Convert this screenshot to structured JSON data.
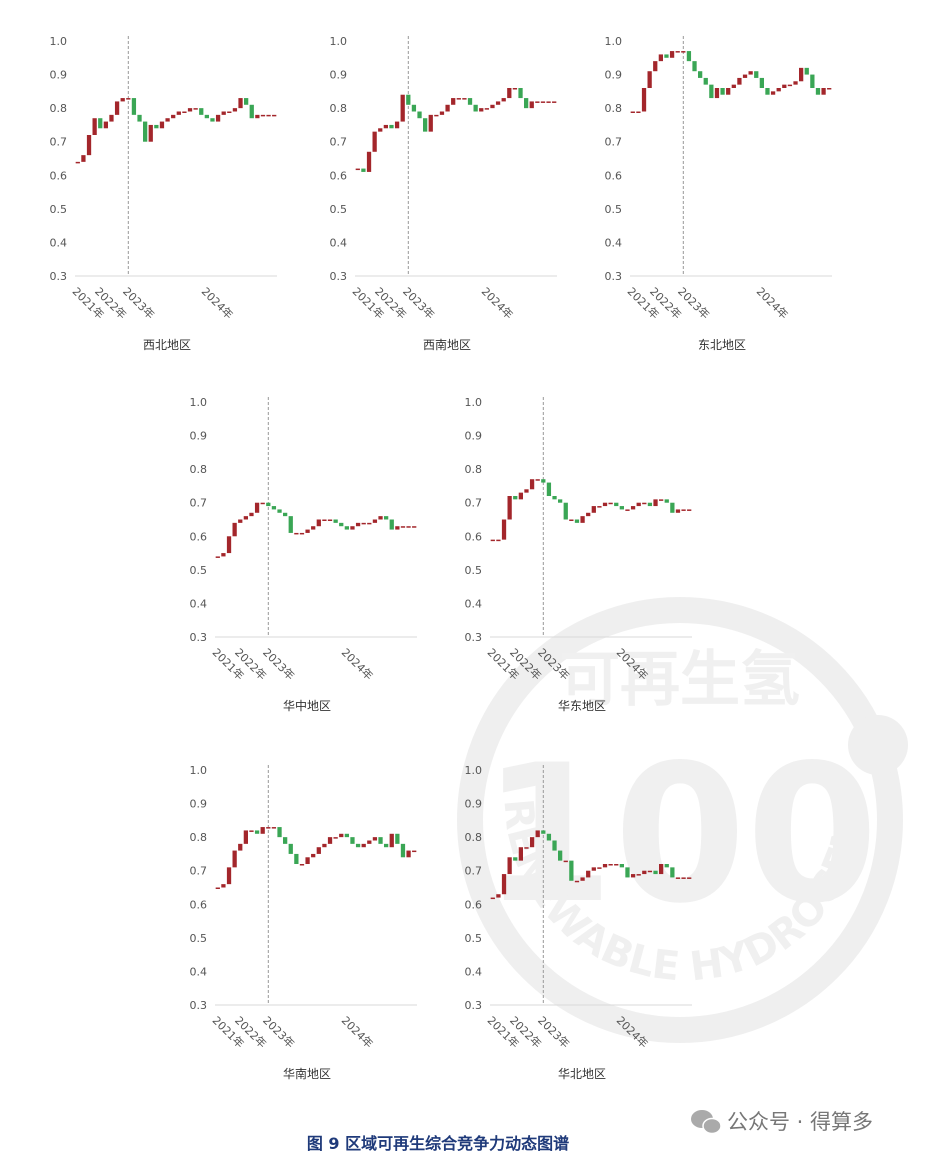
{
  "caption": "图 9 区域可再生综合竞争力动态图谱",
  "watermark": "公众号 · 得算多",
  "logo": {
    "top": "可再生氢",
    "number": "100",
    "ring": "RENEWABLE HYDROGEN"
  },
  "chart_data": [
    {
      "type": "candlestick",
      "title": "西北地区",
      "up_color": "#a3262b",
      "down_color": "#3aa655",
      "divider_index": 9,
      "categories": [
        "2021年",
        null,
        null,
        null,
        "2022年",
        null,
        null,
        null,
        null,
        "2023年",
        null,
        null,
        null,
        null,
        null,
        null,
        null,
        null,
        null,
        null,
        null,
        null,
        null,
        "2024年",
        null,
        null,
        null,
        null,
        null,
        null,
        null,
        null,
        null,
        null,
        null,
        null
      ],
      "values": [
        0.64,
        0.66,
        0.72,
        0.77,
        0.74,
        0.76,
        0.78,
        0.82,
        0.83,
        0.83,
        0.78,
        0.76,
        0.7,
        0.75,
        0.74,
        0.76,
        0.77,
        0.78,
        0.79,
        0.79,
        0.8,
        0.8,
        0.78,
        0.77,
        0.76,
        0.78,
        0.79,
        0.79,
        0.8,
        0.83,
        0.81,
        0.77,
        0.78,
        0.78,
        0.78,
        0.78
      ],
      "ylim": [
        0.3,
        1.0
      ],
      "yticks": [
        0.3,
        0.4,
        0.5,
        0.6,
        0.7,
        0.8,
        0.9,
        {
          "value": 1.0,
          "label": "1.0"
        }
      ]
    },
    {
      "type": "candlestick",
      "title": "西南地区",
      "up_color": "#a3262b",
      "down_color": "#3aa655",
      "divider_index": 9,
      "categories": [
        "2021年",
        null,
        null,
        null,
        "2022年",
        null,
        null,
        null,
        null,
        "2023年",
        null,
        null,
        null,
        null,
        null,
        null,
        null,
        null,
        null,
        null,
        null,
        null,
        null,
        "2024年",
        null,
        null,
        null,
        null,
        null,
        null,
        null,
        null,
        null,
        null,
        null,
        null
      ],
      "values": [
        0.62,
        0.61,
        0.67,
        0.73,
        0.74,
        0.75,
        0.74,
        0.76,
        0.84,
        0.81,
        0.79,
        0.77,
        0.73,
        0.78,
        0.78,
        0.79,
        0.81,
        0.83,
        0.83,
        0.83,
        0.81,
        0.79,
        0.8,
        0.8,
        0.81,
        0.82,
        0.83,
        0.86,
        0.86,
        0.83,
        0.8,
        0.82,
        0.82,
        0.82,
        0.82,
        0.82
      ],
      "ylim": [
        0.3,
        1.0
      ],
      "yticks": [
        0.3,
        0.4,
        0.5,
        0.6,
        0.7,
        0.8,
        0.9,
        {
          "value": 1.0,
          "label": "1.0"
        }
      ]
    },
    {
      "type": "candlestick",
      "title": "东北地区",
      "up_color": "#a3262b",
      "down_color": "#3aa655",
      "divider_index": 9,
      "categories": [
        "2021年",
        null,
        null,
        null,
        "2022年",
        null,
        null,
        null,
        null,
        "2023年",
        null,
        null,
        null,
        null,
        null,
        null,
        null,
        null,
        null,
        null,
        null,
        null,
        null,
        "2024年",
        null,
        null,
        null,
        null,
        null,
        null,
        null,
        null,
        null,
        null,
        null,
        null
      ],
      "values": [
        0.79,
        0.79,
        0.86,
        0.91,
        0.94,
        0.96,
        0.95,
        0.97,
        0.97,
        0.97,
        0.94,
        0.91,
        0.89,
        0.87,
        0.83,
        0.86,
        0.84,
        0.86,
        0.87,
        0.89,
        0.9,
        0.91,
        0.89,
        0.86,
        0.84,
        0.85,
        0.86,
        0.87,
        0.87,
        0.88,
        0.92,
        0.9,
        0.86,
        0.84,
        0.86,
        0.86
      ],
      "ylim": [
        0.3,
        1.0
      ],
      "yticks": [
        0.3,
        0.4,
        0.5,
        0.6,
        0.7,
        0.8,
        0.9,
        {
          "value": 1.0,
          "label": "1.0"
        }
      ]
    },
    {
      "type": "candlestick",
      "title": "华中地区",
      "up_color": "#a3262b",
      "down_color": "#3aa655",
      "divider_index": 9,
      "categories": [
        "2021年",
        null,
        null,
        null,
        "2022年",
        null,
        null,
        null,
        null,
        "2023年",
        null,
        null,
        null,
        null,
        null,
        null,
        null,
        null,
        null,
        null,
        null,
        null,
        null,
        "2024年",
        null,
        null,
        null,
        null,
        null,
        null,
        null,
        null,
        null,
        null,
        null,
        null
      ],
      "values": [
        0.54,
        0.55,
        0.6,
        0.64,
        0.65,
        0.66,
        0.67,
        0.7,
        0.7,
        0.69,
        0.68,
        0.67,
        0.66,
        0.61,
        0.61,
        0.61,
        0.62,
        0.63,
        0.65,
        0.65,
        0.65,
        0.64,
        0.63,
        0.62,
        0.63,
        0.64,
        0.64,
        0.64,
        0.65,
        0.66,
        0.65,
        0.62,
        0.63,
        0.63,
        0.63,
        0.63
      ],
      "ylim": [
        0.3,
        1.0
      ],
      "yticks": [
        0.3,
        0.4,
        0.5,
        0.6,
        0.7,
        0.8,
        0.9,
        {
          "value": 1.0,
          "label": "1.0"
        }
      ]
    },
    {
      "type": "candlestick",
      "title": "华东地区",
      "up_color": "#a3262b",
      "down_color": "#3aa655",
      "divider_index": 9,
      "categories": [
        "2021年",
        null,
        null,
        null,
        "2022年",
        null,
        null,
        null,
        null,
        "2023年",
        null,
        null,
        null,
        null,
        null,
        null,
        null,
        null,
        null,
        null,
        null,
        null,
        null,
        "2024年",
        null,
        null,
        null,
        null,
        null,
        null,
        null,
        null,
        null,
        null,
        null,
        null
      ],
      "values": [
        0.59,
        0.59,
        0.65,
        0.72,
        0.71,
        0.73,
        0.74,
        0.77,
        0.77,
        0.76,
        0.72,
        0.71,
        0.7,
        0.65,
        0.65,
        0.64,
        0.66,
        0.67,
        0.69,
        0.69,
        0.7,
        0.7,
        0.69,
        0.68,
        0.68,
        0.69,
        0.7,
        0.7,
        0.69,
        0.71,
        0.71,
        0.7,
        0.67,
        0.68,
        0.68,
        0.68
      ],
      "ylim": [
        0.3,
        1.0
      ],
      "yticks": [
        0.3,
        0.4,
        0.5,
        0.6,
        0.7,
        0.8,
        0.9,
        {
          "value": 1.0,
          "label": "1.0"
        }
      ]
    },
    {
      "type": "candlestick",
      "title": "华南地区",
      "up_color": "#a3262b",
      "down_color": "#3aa655",
      "divider_index": 9,
      "categories": [
        "2021年",
        null,
        null,
        null,
        "2022年",
        null,
        null,
        null,
        null,
        "2023年",
        null,
        null,
        null,
        null,
        null,
        null,
        null,
        null,
        null,
        null,
        null,
        null,
        null,
        "2024年",
        null,
        null,
        null,
        null,
        null,
        null,
        null,
        null,
        null,
        null,
        null,
        null
      ],
      "values": [
        0.65,
        0.66,
        0.71,
        0.76,
        0.78,
        0.82,
        0.82,
        0.81,
        0.83,
        0.83,
        0.83,
        0.8,
        0.78,
        0.75,
        0.72,
        0.72,
        0.74,
        0.75,
        0.77,
        0.78,
        0.8,
        0.8,
        0.81,
        0.8,
        0.78,
        0.77,
        0.78,
        0.79,
        0.8,
        0.78,
        0.77,
        0.81,
        0.78,
        0.74,
        0.76,
        0.76
      ],
      "ylim": [
        0.3,
        1.0
      ],
      "yticks": [
        0.3,
        0.4,
        0.5,
        0.6,
        0.7,
        0.8,
        0.9,
        {
          "value": 1.0,
          "label": "1.0"
        }
      ]
    },
    {
      "type": "candlestick",
      "title": "华北地区",
      "up_color": "#a3262b",
      "down_color": "#3aa655",
      "divider_index": 9,
      "categories": [
        "2021年",
        null,
        null,
        null,
        "2022年",
        null,
        null,
        null,
        null,
        "2023年",
        null,
        null,
        null,
        null,
        null,
        null,
        null,
        null,
        null,
        null,
        null,
        null,
        null,
        "2024年",
        null,
        null,
        null,
        null,
        null,
        null,
        null,
        null,
        null,
        null,
        null,
        null
      ],
      "values": [
        0.62,
        0.63,
        0.69,
        0.74,
        0.73,
        0.77,
        0.77,
        0.8,
        0.82,
        0.81,
        0.79,
        0.76,
        0.73,
        0.73,
        0.67,
        0.67,
        0.68,
        0.7,
        0.71,
        0.71,
        0.72,
        0.72,
        0.72,
        0.71,
        0.68,
        0.69,
        0.69,
        0.7,
        0.7,
        0.69,
        0.72,
        0.71,
        0.68,
        0.68,
        0.68,
        0.68
      ],
      "ylim": [
        0.3,
        1.0
      ],
      "yticks": [
        0.3,
        0.4,
        0.5,
        0.6,
        0.7,
        0.8,
        0.9,
        {
          "value": 1.0,
          "label": "1.0"
        }
      ]
    }
  ]
}
